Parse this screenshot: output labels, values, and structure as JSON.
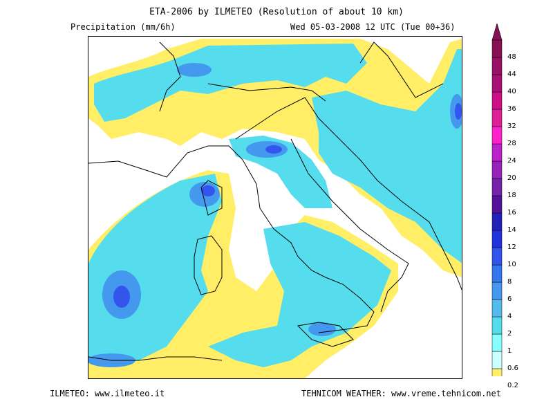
{
  "header": {
    "title": "ETA-2006 by ILMETEO (Resolution of about 10 km)",
    "variable": "Precipitation (mm/6h)",
    "valid_time": "Wed 05-03-2008 12 UTC (Tue 00+36)"
  },
  "footer": {
    "left": "ILMETEO: www.ilmeteo.it",
    "right": "TEHNICOM WEATHER: www.vreme.tehnicom.net"
  },
  "legend": {
    "unit": "mm/6h",
    "levels": [
      "0.2",
      "0.6",
      "1",
      "2",
      "4",
      "6",
      "8",
      "10",
      "12",
      "14",
      "16",
      "18",
      "20",
      "24",
      "28",
      "32",
      "36",
      "40",
      "44",
      "48"
    ],
    "colors": [
      "#ffee66",
      "#ccffff",
      "#88ffff",
      "#55ddee",
      "#55bbee",
      "#4499ee",
      "#3377ee",
      "#3355ee",
      "#2233dd",
      "#2222bb",
      "#551199",
      "#7722aa",
      "#9922bb",
      "#bb22cc",
      "#ff22cc",
      "#dd2299",
      "#cc1188",
      "#aa1177",
      "#991166",
      "#881155"
    ]
  },
  "colors": {
    "dry": "#ffffff",
    "light_yellow": "#ffee66",
    "very_light": "#ccffff",
    "light_cyan": "#88ffff",
    "cyan": "#55ddee",
    "blue_light": "#55bbee",
    "blue_mid": "#4499ee",
    "blue_dark": "#3355ee",
    "coastline": "#000000"
  }
}
